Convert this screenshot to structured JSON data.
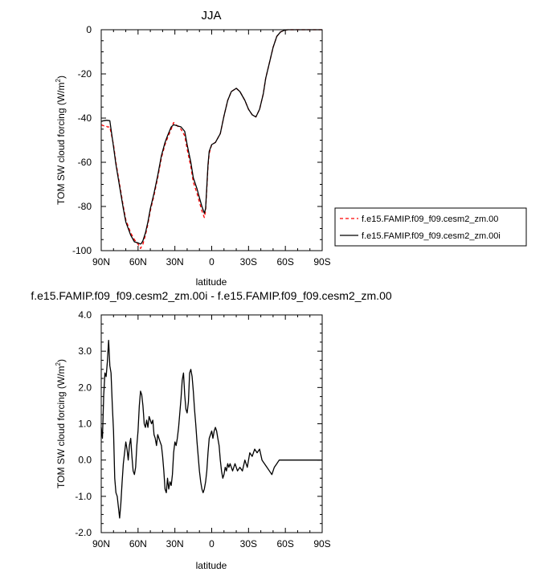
{
  "chart_data": [
    {
      "type": "line",
      "title": "JJA",
      "xlabel": "latitude",
      "ylabel": "TOM SW cloud forcing (W/m²)",
      "ylabel_main": "TOM SW cloud forcing (W/m",
      "ylabel_sup": "2",
      "ylabel_end": ")",
      "xlim": [
        90,
        -90
      ],
      "ylim": [
        -100,
        0
      ],
      "xticks": [
        90,
        60,
        30,
        0,
        -30,
        -60,
        -90
      ],
      "xticklabels": [
        "90N",
        "60N",
        "30N",
        "0",
        "30S",
        "60S",
        "90S"
      ],
      "yticks": [
        0,
        -20,
        -40,
        -60,
        -80,
        -100
      ],
      "yticklabels": [
        "0",
        "-20",
        "-40",
        "-60",
        "-80",
        "-100"
      ],
      "legend": "outside-right",
      "x": [
        90,
        88,
        86,
        85,
        83,
        80,
        78,
        75,
        72,
        70,
        66,
        63,
        60,
        58,
        57,
        56,
        54,
        52,
        50,
        47,
        44,
        41,
        38,
        36,
        33,
        31,
        28,
        25,
        22,
        20,
        17,
        15,
        12,
        10,
        8,
        6,
        5,
        4,
        3,
        2,
        0,
        -3,
        -7,
        -10,
        -13,
        -16,
        -20,
        -23,
        -27,
        -30,
        -33,
        -36,
        -39,
        -42,
        -44,
        -47,
        -50,
        -53,
        -56,
        -59,
        -62,
        -64,
        -66,
        -68,
        -70,
        -73,
        -75,
        -80,
        -85,
        -90
      ],
      "series": [
        {
          "name": "f.e15.FAMIP.f09_f09.cesm2_zm.00",
          "color": "#ff0000",
          "dash": true,
          "values": [
            -43,
            -43.5,
            -43.5,
            -44,
            -44,
            -52,
            -60,
            -70,
            -80,
            -86,
            -92,
            -95,
            -97,
            -99,
            -98,
            -97,
            -93,
            -88,
            -82,
            -75,
            -67,
            -58,
            -52,
            -49,
            -45,
            -42,
            -43.5,
            -45,
            -48,
            -54,
            -62,
            -69,
            -74,
            -78,
            -82,
            -85,
            -82,
            -72,
            -62,
            -56,
            -52,
            -51,
            -47,
            -39,
            -32,
            -28,
            -26.5,
            -28,
            -32,
            -36,
            -38.5,
            -39.5,
            -36,
            -29,
            -22,
            -15,
            -8,
            -3,
            -1,
            -0.3,
            0,
            0,
            0,
            0,
            0,
            0,
            0,
            0,
            0,
            0
          ]
        },
        {
          "name": "f.e15.FAMIP.f09_f09.cesm2_zm.00i",
          "color": "#000000",
          "dash": false,
          "values": [
            -41.5,
            -41.2,
            -41,
            -41,
            -41.2,
            -53,
            -61,
            -71,
            -81,
            -87,
            -93,
            -96,
            -96.5,
            -97,
            -96.5,
            -95.5,
            -92,
            -87,
            -81,
            -74,
            -66,
            -57,
            -51,
            -48,
            -44,
            -43,
            -43.5,
            -44,
            -46,
            -52,
            -60,
            -67,
            -72,
            -76,
            -80,
            -83,
            -81,
            -71,
            -61,
            -55,
            -52,
            -51,
            -47,
            -39,
            -32,
            -28,
            -26.5,
            -28,
            -32,
            -36,
            -38.5,
            -39.5,
            -36,
            -29,
            -22,
            -15,
            -8,
            -3,
            -1,
            -0.3,
            0,
            0,
            0,
            0,
            0,
            0,
            0,
            0,
            0,
            0
          ]
        }
      ]
    },
    {
      "type": "line",
      "title": "f.e15.FAMIP.f09_f09.cesm2_zm.00i - f.e15.FAMIP.f09_f09.cesm2_zm.00",
      "xlabel": "latitude",
      "ylabel": "TOM SW cloud forcing (W/m²)",
      "ylabel_main": "TOM SW cloud forcing (W/m",
      "ylabel_sup": "2",
      "ylabel_end": ")",
      "xlim": [
        90,
        -90
      ],
      "ylim": [
        -2,
        4
      ],
      "xticks": [
        90,
        60,
        30,
        0,
        -30,
        -60,
        -90
      ],
      "xticklabels": [
        "90N",
        "60N",
        "30N",
        "0",
        "30S",
        "60S",
        "90S"
      ],
      "yticks": [
        4,
        3,
        2,
        1,
        0,
        -1,
        -2
      ],
      "yticklabels": [
        "4.0",
        "3.0",
        "2.0",
        "1.0",
        "0.0",
        "-1.0",
        "-2.0"
      ],
      "x": [
        90,
        89,
        88,
        87,
        86,
        85,
        84,
        83,
        82,
        81,
        80,
        79,
        78,
        77,
        76,
        75,
        74,
        73,
        72,
        70,
        69,
        68,
        67,
        66,
        65,
        64,
        63,
        62,
        61,
        60,
        59,
        58,
        57,
        56,
        55,
        54,
        53,
        52,
        51,
        50,
        49,
        48,
        47,
        46,
        45,
        44,
        43,
        42,
        41,
        40,
        39,
        38,
        37,
        36,
        35,
        34,
        33,
        32,
        31,
        30,
        29,
        28,
        27,
        26,
        25,
        24,
        23,
        22,
        21,
        20,
        19,
        18,
        17,
        16,
        15,
        14,
        13,
        12,
        11,
        10,
        9,
        8,
        7,
        6,
        5,
        4,
        3,
        2,
        1,
        0,
        -1,
        -2,
        -3,
        -4,
        -5,
        -6,
        -7,
        -8,
        -9,
        -10,
        -11,
        -12,
        -13,
        -14,
        -15,
        -17,
        -19,
        -21,
        -23,
        -25,
        -27,
        -29,
        -31,
        -33,
        -35,
        -37,
        -39,
        -41,
        -43,
        -45,
        -47,
        -49,
        -51,
        -53,
        -55,
        -57,
        -60,
        -63,
        -66,
        -70,
        -75,
        -80,
        -85,
        -90
      ],
      "series": [
        {
          "name": "",
          "color": "#000000",
          "values": [
            0.9,
            0.6,
            1.8,
            2.4,
            2.3,
            2.7,
            3.3,
            2.6,
            2.4,
            1.5,
            0.8,
            -0.5,
            -0.9,
            -1.0,
            -1.3,
            -1.6,
            -1.2,
            -0.6,
            -0.1,
            0.5,
            0.3,
            0.0,
            0.4,
            0.6,
            0.1,
            -0.3,
            -0.4,
            -0.2,
            0.4,
            0.8,
            1.5,
            1.9,
            1.8,
            1.5,
            1.0,
            0.9,
            1.1,
            0.9,
            1.2,
            1.1,
            1.0,
            1.1,
            0.7,
            0.6,
            0.4,
            0.7,
            0.6,
            0.5,
            0.4,
            0.1,
            -0.3,
            -0.8,
            -0.9,
            -0.5,
            -0.8,
            -0.6,
            -0.7,
            -0.4,
            0.2,
            0.5,
            0.4,
            0.6,
            0.9,
            1.3,
            1.7,
            2.2,
            2.4,
            1.8,
            1.4,
            1.3,
            1.6,
            2.4,
            2.5,
            2.3,
            1.9,
            1.4,
            1.0,
            0.5,
            0.1,
            -0.3,
            -0.6,
            -0.8,
            -0.9,
            -0.8,
            -0.6,
            -0.3,
            0.2,
            0.6,
            0.7,
            0.8,
            0.6,
            0.8,
            0.9,
            0.8,
            0.6,
            0.4,
            0.0,
            -0.3,
            -0.5,
            -0.4,
            -0.2,
            -0.3,
            -0.1,
            -0.2,
            -0.1,
            -0.3,
            -0.1,
            -0.3,
            -0.2,
            -0.3,
            0.0,
            -0.2,
            0.2,
            0.1,
            0.3,
            0.2,
            0.3,
            0.0,
            -0.1,
            -0.2,
            -0.3,
            -0.4,
            -0.2,
            -0.1,
            0.0,
            0.0,
            0.0,
            0.0,
            0.0,
            0.0,
            0.0,
            0.0,
            0.0,
            0.0
          ]
        }
      ]
    }
  ]
}
